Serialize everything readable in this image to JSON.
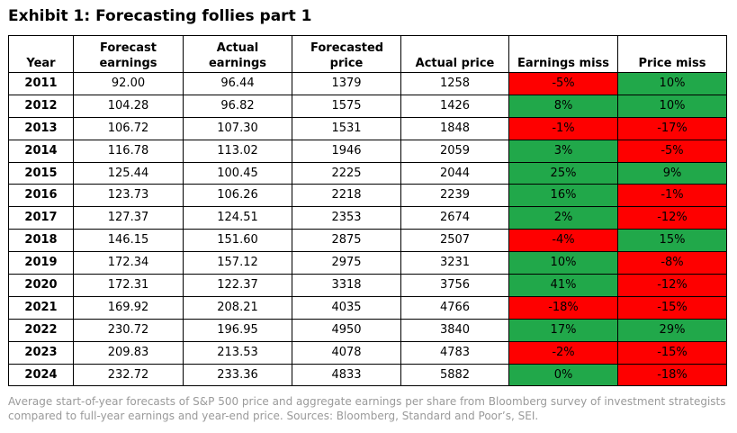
{
  "title": "Exhibit 1: Forecasting follies part 1",
  "columns": [
    "Year",
    "Forecast earnings",
    "Actual earnings",
    "Forecasted price",
    "Actual price",
    "Earnings miss",
    "Price miss"
  ],
  "rows": [
    {
      "year": "2011",
      "fe": "92.00",
      "ae": "96.44",
      "fp": "1379",
      "ap": "1258",
      "em": "-5%",
      "pm": "10%"
    },
    {
      "year": "2012",
      "fe": "104.28",
      "ae": "96.82",
      "fp": "1575",
      "ap": "1426",
      "em": "8%",
      "pm": "10%"
    },
    {
      "year": "2013",
      "fe": "106.72",
      "ae": "107.30",
      "fp": "1531",
      "ap": "1848",
      "em": "-1%",
      "pm": "-17%"
    },
    {
      "year": "2014",
      "fe": "116.78",
      "ae": "113.02",
      "fp": "1946",
      "ap": "2059",
      "em": "3%",
      "pm": "-5%"
    },
    {
      "year": "2015",
      "fe": "125.44",
      "ae": "100.45",
      "fp": "2225",
      "ap": "2044",
      "em": "25%",
      "pm": "9%"
    },
    {
      "year": "2016",
      "fe": "123.73",
      "ae": "106.26",
      "fp": "2218",
      "ap": "2239",
      "em": "16%",
      "pm": "-1%"
    },
    {
      "year": "2017",
      "fe": "127.37",
      "ae": "124.51",
      "fp": "2353",
      "ap": "2674",
      "em": "2%",
      "pm": "-12%"
    },
    {
      "year": "2018",
      "fe": "146.15",
      "ae": "151.60",
      "fp": "2875",
      "ap": "2507",
      "em": "-4%",
      "pm": "15%"
    },
    {
      "year": "2019",
      "fe": "172.34",
      "ae": "157.12",
      "fp": "2975",
      "ap": "3231",
      "em": "10%",
      "pm": "-8%"
    },
    {
      "year": "2020",
      "fe": "172.31",
      "ae": "122.37",
      "fp": "3318",
      "ap": "3756",
      "em": "41%",
      "pm": "-12%"
    },
    {
      "year": "2021",
      "fe": "169.92",
      "ae": "208.21",
      "fp": "4035",
      "ap": "4766",
      "em": "-18%",
      "pm": "-15%"
    },
    {
      "year": "2022",
      "fe": "230.72",
      "ae": "196.95",
      "fp": "4950",
      "ap": "3840",
      "em": "17%",
      "pm": "29%"
    },
    {
      "year": "2023",
      "fe": "209.83",
      "ae": "213.53",
      "fp": "4078",
      "ap": "4783",
      "em": "-2%",
      "pm": "-15%"
    },
    {
      "year": "2024",
      "fe": "232.72",
      "ae": "233.36",
      "fp": "4833",
      "ap": "5882",
      "em": "0%",
      "pm": "-18%"
    }
  ],
  "colors": {
    "positive": "#21a84a",
    "negative": "#fe0000"
  },
  "caption": "Average start-of-year forecasts of S&P 500 price and aggregate earnings per share from Bloomberg survey of investment strategists compared to full-year earnings and year-end price. Sources: Bloomberg, Standard and Poor’s, SEI."
}
